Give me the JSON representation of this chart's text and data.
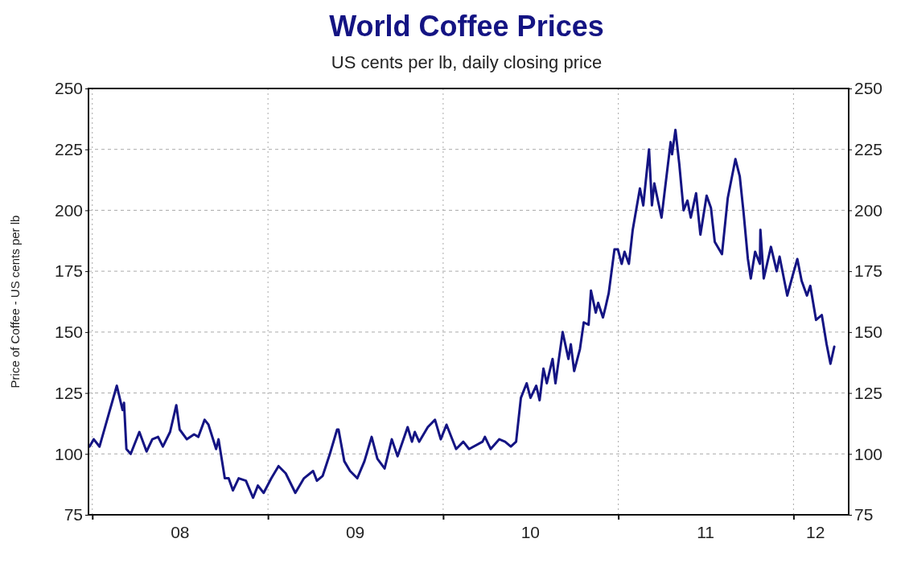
{
  "chart_data": {
    "type": "line",
    "title": "World Coffee Prices",
    "subtitle": "US cents per lb, daily closing price",
    "ylabel": "Price of Coffee - US cents per lb",
    "xlim": [
      "2007-12-24",
      "2012-04-25"
    ],
    "xticks": [
      {
        "value": "2008-01-01",
        "label": null
      },
      {
        "value": "2008-07-01",
        "label": "08"
      },
      {
        "value": "2009-01-01",
        "label": null
      },
      {
        "value": "2009-07-01",
        "label": "09"
      },
      {
        "value": "2010-01-01",
        "label": null
      },
      {
        "value": "2010-07-01",
        "label": "10"
      },
      {
        "value": "2011-01-01",
        "label": null
      },
      {
        "value": "2011-07-01",
        "label": "11"
      },
      {
        "value": "2012-01-01",
        "label": null
      },
      {
        "value": "2012-02-15",
        "label": "12"
      }
    ],
    "ylim": [
      75,
      250
    ],
    "yticks": [
      75,
      100,
      125,
      150,
      175,
      200,
      225,
      250
    ],
    "y2lim": [
      75,
      250
    ],
    "y2ticks": [
      75,
      100,
      125,
      150,
      175,
      200,
      225,
      250
    ],
    "grid": true,
    "marker": "none",
    "line_style": "solid",
    "series": [
      {
        "color": "#141483",
        "x": [
          "2007-12-26",
          "2008-01-04",
          "2008-01-16",
          "2008-02-21",
          "2008-03-04",
          "2008-03-07",
          "2008-03-12",
          "2008-03-21",
          "2008-04-08",
          "2008-04-23",
          "2008-05-05",
          "2008-05-17",
          "2008-05-27",
          "2008-06-11",
          "2008-06-24",
          "2008-07-01",
          "2008-07-16",
          "2008-07-31",
          "2008-08-09",
          "2008-08-22",
          "2008-08-30",
          "2008-09-15",
          "2008-09-20",
          "2008-10-03",
          "2008-10-11",
          "2008-10-20",
          "2008-11-01",
          "2008-11-16",
          "2008-12-01",
          "2008-12-11",
          "2008-12-23",
          "2009-01-08",
          "2009-01-23",
          "2009-02-07",
          "2009-02-27",
          "2009-03-17",
          "2009-04-05",
          "2009-04-13",
          "2009-04-25",
          "2009-05-10",
          "2009-05-25",
          "2009-05-28",
          "2009-06-09",
          "2009-06-21",
          "2009-07-06",
          "2009-07-21",
          "2009-08-05",
          "2009-08-17",
          "2009-09-01",
          "2009-09-16",
          "2009-09-28",
          "2009-10-19",
          "2009-10-28",
          "2009-11-03",
          "2009-11-12",
          "2009-11-30",
          "2009-12-15",
          "2009-12-27",
          "2010-01-08",
          "2010-01-28",
          "2010-02-12",
          "2010-02-24",
          "2010-03-24",
          "2010-03-29",
          "2010-04-10",
          "2010-04-28",
          "2010-05-10",
          "2010-05-22",
          "2010-06-02",
          "2010-06-12",
          "2010-06-24",
          "2010-07-02",
          "2010-07-14",
          "2010-07-21",
          "2010-07-29",
          "2010-08-05",
          "2010-08-17",
          "2010-08-23",
          "2010-09-07",
          "2010-09-19",
          "2010-09-24",
          "2010-10-01",
          "2010-10-13",
          "2010-10-21",
          "2010-10-31",
          "2010-11-05",
          "2010-11-15",
          "2010-11-20",
          "2010-11-30",
          "2010-12-05",
          "2010-12-12",
          "2010-12-24",
          "2010-12-31",
          "2011-01-08",
          "2011-01-14",
          "2011-01-23",
          "2011-01-31",
          "2011-02-15",
          "2011-02-22",
          "2011-03-06",
          "2011-03-12",
          "2011-03-17",
          "2011-04-01",
          "2011-04-20",
          "2011-04-23",
          "2011-04-30",
          "2011-05-08",
          "2011-05-17",
          "2011-05-25",
          "2011-06-01",
          "2011-06-12",
          "2011-06-21",
          "2011-07-04",
          "2011-07-13",
          "2011-07-21",
          "2011-08-05",
          "2011-08-17",
          "2011-09-02",
          "2011-09-11",
          "2011-09-19",
          "2011-09-28",
          "2011-10-04",
          "2011-10-13",
          "2011-10-23",
          "2011-10-24",
          "2011-10-31",
          "2011-11-15",
          "2011-11-27",
          "2011-12-03",
          "2011-12-19",
          "2011-12-30",
          "2012-01-09",
          "2012-01-18",
          "2012-01-29",
          "2012-02-05",
          "2012-02-17",
          "2012-02-29",
          "2012-03-10",
          "2012-03-18",
          "2012-03-26"
        ],
        "values": [
          103,
          106,
          103,
          128,
          118,
          121,
          102,
          100,
          109,
          101,
          106,
          107,
          103,
          109,
          120,
          110,
          106,
          108,
          107,
          114,
          112,
          102,
          106,
          90,
          90,
          85,
          90,
          89,
          82,
          87,
          84,
          90,
          95,
          92,
          84,
          90,
          93,
          89,
          91,
          100,
          110,
          110,
          97,
          93,
          90,
          97,
          107,
          98,
          94,
          106,
          99,
          111,
          105,
          109,
          105,
          111,
          114,
          106,
          112,
          102,
          105,
          102,
          105,
          107,
          102,
          106,
          105,
          103,
          105,
          123,
          129,
          123,
          128,
          122,
          135,
          129,
          139,
          129,
          150,
          139,
          145,
          134,
          143,
          154,
          153,
          167,
          158,
          162,
          156,
          160,
          166,
          184,
          184,
          178,
          183,
          178,
          192,
          209,
          202,
          225,
          202,
          211,
          197,
          228,
          223,
          233,
          219,
          200,
          204,
          197,
          207,
          190,
          206,
          201,
          187,
          182,
          205,
          221,
          214,
          199,
          180,
          172,
          183,
          178,
          192,
          172,
          185,
          175,
          181,
          165,
          173,
          180,
          171,
          165,
          169,
          155,
          157,
          145,
          137,
          144
        ]
      }
    ]
  }
}
